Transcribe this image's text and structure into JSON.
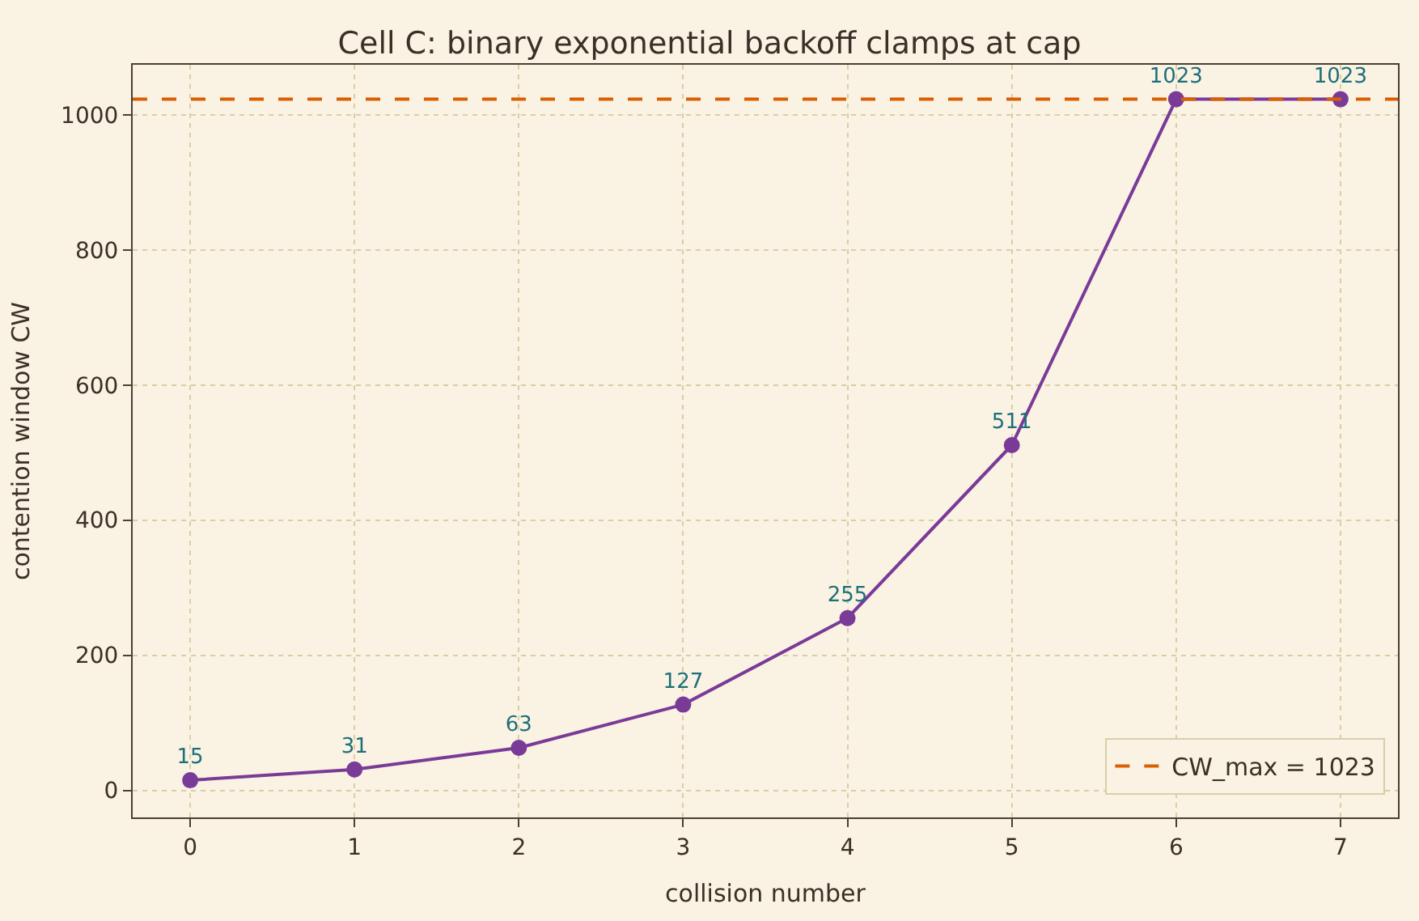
{
  "chart_data": {
    "type": "line",
    "title": "Cell C: binary exponential backoff clamps at cap",
    "xlabel": "collision number",
    "ylabel": "contention window CW",
    "x": [
      0,
      1,
      2,
      3,
      4,
      5,
      6,
      7
    ],
    "series": [
      {
        "color": "#7a3b98",
        "values": [
          15,
          31,
          63,
          127,
          255,
          511,
          1023,
          1023
        ]
      }
    ],
    "xlim": [
      -0.35,
      7.35
    ],
    "xticks": [
      0,
      1,
      2,
      3,
      4,
      5,
      6,
      7
    ],
    "ylim": [
      -40,
      1074
    ],
    "yticks": [
      0,
      200,
      400,
      600,
      800,
      1000
    ],
    "ref_lines": [
      {
        "axis": "y",
        "value": 1023,
        "label": "CW_max = 1023",
        "color": "#d95f02",
        "line_style": "dashed"
      }
    ],
    "data_labels": true,
    "grid": true,
    "legend": "bottom right",
    "marker": "circle",
    "line_style": "solid"
  }
}
